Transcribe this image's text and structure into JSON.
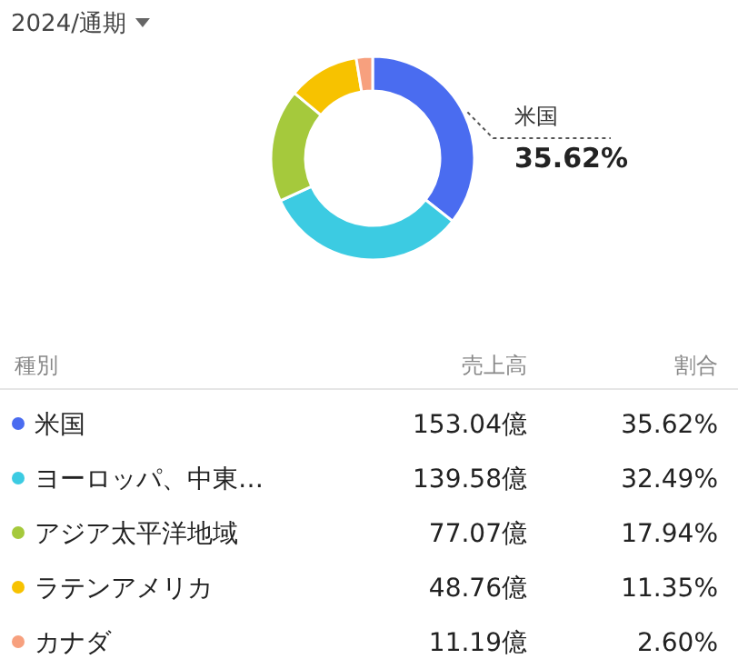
{
  "chart_data": {
    "type": "donut",
    "title": "2024/通期",
    "legend": "bottom",
    "categories": [
      "米国",
      "ヨーロッパ、中東…",
      "アジア太平洋地域",
      "ラテンアメリカ",
      "カナダ"
    ],
    "values": [
      35.62,
      32.49,
      17.94,
      11.35,
      2.6
    ],
    "colors": [
      "#4a6cf0",
      "#3ccbe2",
      "#a5c93c",
      "#f7c200",
      "#f7a07e"
    ],
    "value_labels": [
      "35.62%",
      "32.49%",
      "17.94%",
      "11.35%",
      "2.60%"
    ],
    "annotations": [
      "種別",
      "売上高",
      "割合",
      "153.04億",
      "139.58億",
      "77.07億",
      "48.76億",
      "11.19億"
    ]
  }
}
